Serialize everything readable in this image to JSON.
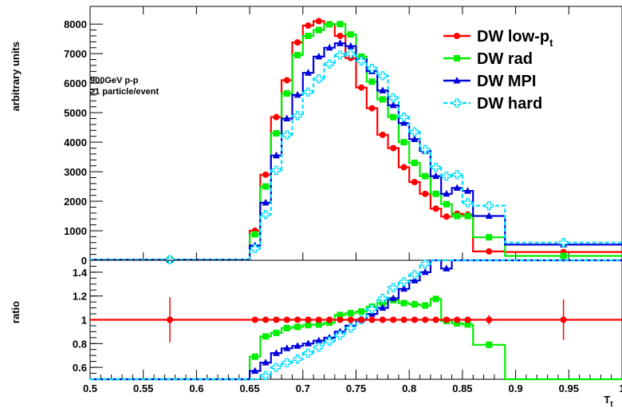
{
  "chart_data": [
    {
      "type": "line",
      "panel": "main",
      "ylabel": "arbitrary units",
      "xlim": [
        0.5,
        1.0
      ],
      "ylim": [
        0,
        8600
      ],
      "yticks": [
        0,
        1000,
        2000,
        3000,
        4000,
        5000,
        6000,
        7000,
        8000
      ],
      "ytick_labels": [
        "0",
        "1000",
        "2000",
        "3000",
        "4000",
        "5000",
        "6000",
        "7000",
        "8000"
      ],
      "bin_edges": [
        0.5,
        0.65,
        0.66,
        0.67,
        0.68,
        0.69,
        0.7,
        0.71,
        0.72,
        0.73,
        0.74,
        0.75,
        0.76,
        0.77,
        0.78,
        0.79,
        0.8,
        0.81,
        0.82,
        0.83,
        0.84,
        0.85,
        0.86,
        0.89,
        1.0
      ],
      "annotations": [
        "900GeV p-p",
        "≥1 particle/event"
      ],
      "legend_position": "top-right",
      "series": [
        {
          "name": "DW low-p",
          "name_sub": "t",
          "color": "#ff0000",
          "marker": "circle",
          "values": [
            20,
            1000,
            2900,
            4850,
            6100,
            7380,
            7950,
            8100,
            8000,
            7600,
            6850,
            5850,
            5150,
            4250,
            3800,
            3150,
            2650,
            2250,
            1750,
            1480,
            1580,
            1550,
            300,
            280
          ]
        },
        {
          "name": "DW rad",
          "name_sub": "",
          "color": "#00ee00",
          "marker": "square",
          "values": [
            20,
            880,
            2500,
            4300,
            5650,
            6950,
            7600,
            7800,
            7990,
            8000,
            7650,
            6900,
            6050,
            5450,
            4850,
            4000,
            3300,
            2850,
            2250,
            1900,
            1500,
            1500,
            780,
            150
          ]
        },
        {
          "name": "DW MPI",
          "name_sub": "",
          "color": "#0000dd",
          "marker": "triangle",
          "values": [
            20,
            500,
            1950,
            3550,
            4800,
            5600,
            6350,
            6900,
            7200,
            7350,
            7250,
            6800,
            6400,
            5750,
            5250,
            4650,
            4100,
            3700,
            2850,
            2250,
            2450,
            2350,
            1500,
            530
          ]
        },
        {
          "name": "DW hard",
          "name_sub": "",
          "color": "#00ddff",
          "marker": "cross",
          "values": [
            20,
            400,
            1550,
            3050,
            4250,
            4900,
            5700,
            6150,
            6650,
            6950,
            7000,
            6750,
            6500,
            6250,
            5500,
            4850,
            4350,
            3750,
            3150,
            2850,
            2900,
            1950,
            1850,
            600
          ]
        }
      ]
    },
    {
      "type": "line",
      "panel": "ratio",
      "ylabel": "ratio",
      "xlabel": "T",
      "xlabel_sub": "t",
      "xlim": [
        0.5,
        1.0
      ],
      "ylim": [
        0.5,
        1.5
      ],
      "yticks": [
        0.6,
        0.8,
        1.0,
        1.2,
        1.4
      ],
      "ytick_labels": [
        "0.6",
        "0.8",
        "1",
        "1.2",
        "1.4"
      ],
      "xticks": [
        0.5,
        0.55,
        0.6,
        0.65,
        0.7,
        0.75,
        0.8,
        0.85,
        0.9,
        0.95,
        1.0
      ],
      "xtick_labels": [
        "0.5",
        "0.55",
        "0.6",
        "0.65",
        "0.7",
        "0.75",
        "0.8",
        "0.85",
        "0.9",
        "0.95",
        "1"
      ],
      "bin_edges": [
        0.5,
        0.65,
        0.66,
        0.67,
        0.68,
        0.69,
        0.7,
        0.71,
        0.72,
        0.73,
        0.74,
        0.75,
        0.76,
        0.77,
        0.78,
        0.79,
        0.8,
        0.81,
        0.82,
        0.83,
        0.84,
        0.85,
        0.86,
        0.89,
        1.0
      ],
      "series": [
        {
          "name": "DW low-p",
          "color": "#ff0000",
          "marker": "circle",
          "values": [
            1.0,
            1.0,
            1.0,
            1.0,
            1.0,
            1.0,
            1.0,
            1.0,
            1.0,
            1.0,
            1.0,
            1.0,
            1.0,
            1.0,
            1.0,
            1.0,
            1.0,
            1.0,
            1.0,
            1.0,
            1.0,
            1.0,
            1.0,
            1.0
          ],
          "errors": [
            0.19,
            0.02,
            0.01,
            0.01,
            0.01,
            0.01,
            0.01,
            0.01,
            0.01,
            0.01,
            0.01,
            0.01,
            0.01,
            0.01,
            0.01,
            0.01,
            0.01,
            0.01,
            0.01,
            0.01,
            0.01,
            0.01,
            0.04,
            0.17
          ]
        },
        {
          "name": "DW rad",
          "color": "#00ee00",
          "marker": "square",
          "values": [
            0.5,
            0.69,
            0.86,
            0.89,
            0.93,
            0.94,
            0.955,
            0.96,
            0.975,
            1.04,
            1.055,
            1.07,
            1.11,
            1.14,
            1.165,
            1.14,
            1.13,
            1.12,
            1.175,
            0.99,
            0.97,
            0.96,
            0.79,
            0.5
          ],
          "errors": [
            0,
            0.02,
            0.01,
            0.01,
            0.01,
            0.01,
            0.01,
            0.01,
            0.01,
            0.01,
            0.01,
            0.01,
            0.01,
            0.01,
            0.01,
            0.01,
            0.01,
            0.01,
            0.015,
            0.02,
            0.02,
            0.02,
            0.03,
            0
          ]
        },
        {
          "name": "DW MPI",
          "color": "#0000dd",
          "marker": "triangle",
          "values": [
            0.5,
            0.57,
            0.64,
            0.72,
            0.76,
            0.78,
            0.8,
            0.825,
            0.85,
            0.9,
            0.95,
            1.0,
            1.05,
            1.1,
            1.18,
            1.26,
            1.33,
            1.4,
            1.5,
            1.43,
            1.5,
            1.5,
            1.5,
            1.5
          ],
          "errors": [
            0,
            0.02,
            0.01,
            0.01,
            0.01,
            0.01,
            0.01,
            0.01,
            0.01,
            0.01,
            0.01,
            0.01,
            0.01,
            0.01,
            0.01,
            0.01,
            0.01,
            0.01,
            0.015,
            0.02,
            0.02,
            0.02,
            0.03,
            0
          ]
        },
        {
          "name": "DW hard",
          "color": "#00ddff",
          "marker": "cross",
          "values": [
            0.5,
            0.5,
            0.53,
            0.6,
            0.64,
            0.67,
            0.72,
            0.77,
            0.82,
            0.87,
            0.93,
            1.0,
            1.09,
            1.18,
            1.27,
            1.32,
            1.38,
            1.47,
            1.5,
            1.5,
            1.5,
            1.5,
            1.5,
            1.5
          ],
          "errors": [
            0,
            0.02,
            0.01,
            0.01,
            0.01,
            0.01,
            0.01,
            0.01,
            0.01,
            0.01,
            0.01,
            0.01,
            0.01,
            0.01,
            0.01,
            0.01,
            0.01,
            0.01,
            0.015,
            0.02,
            0.02,
            0.02,
            0.03,
            0
          ]
        }
      ]
    }
  ]
}
